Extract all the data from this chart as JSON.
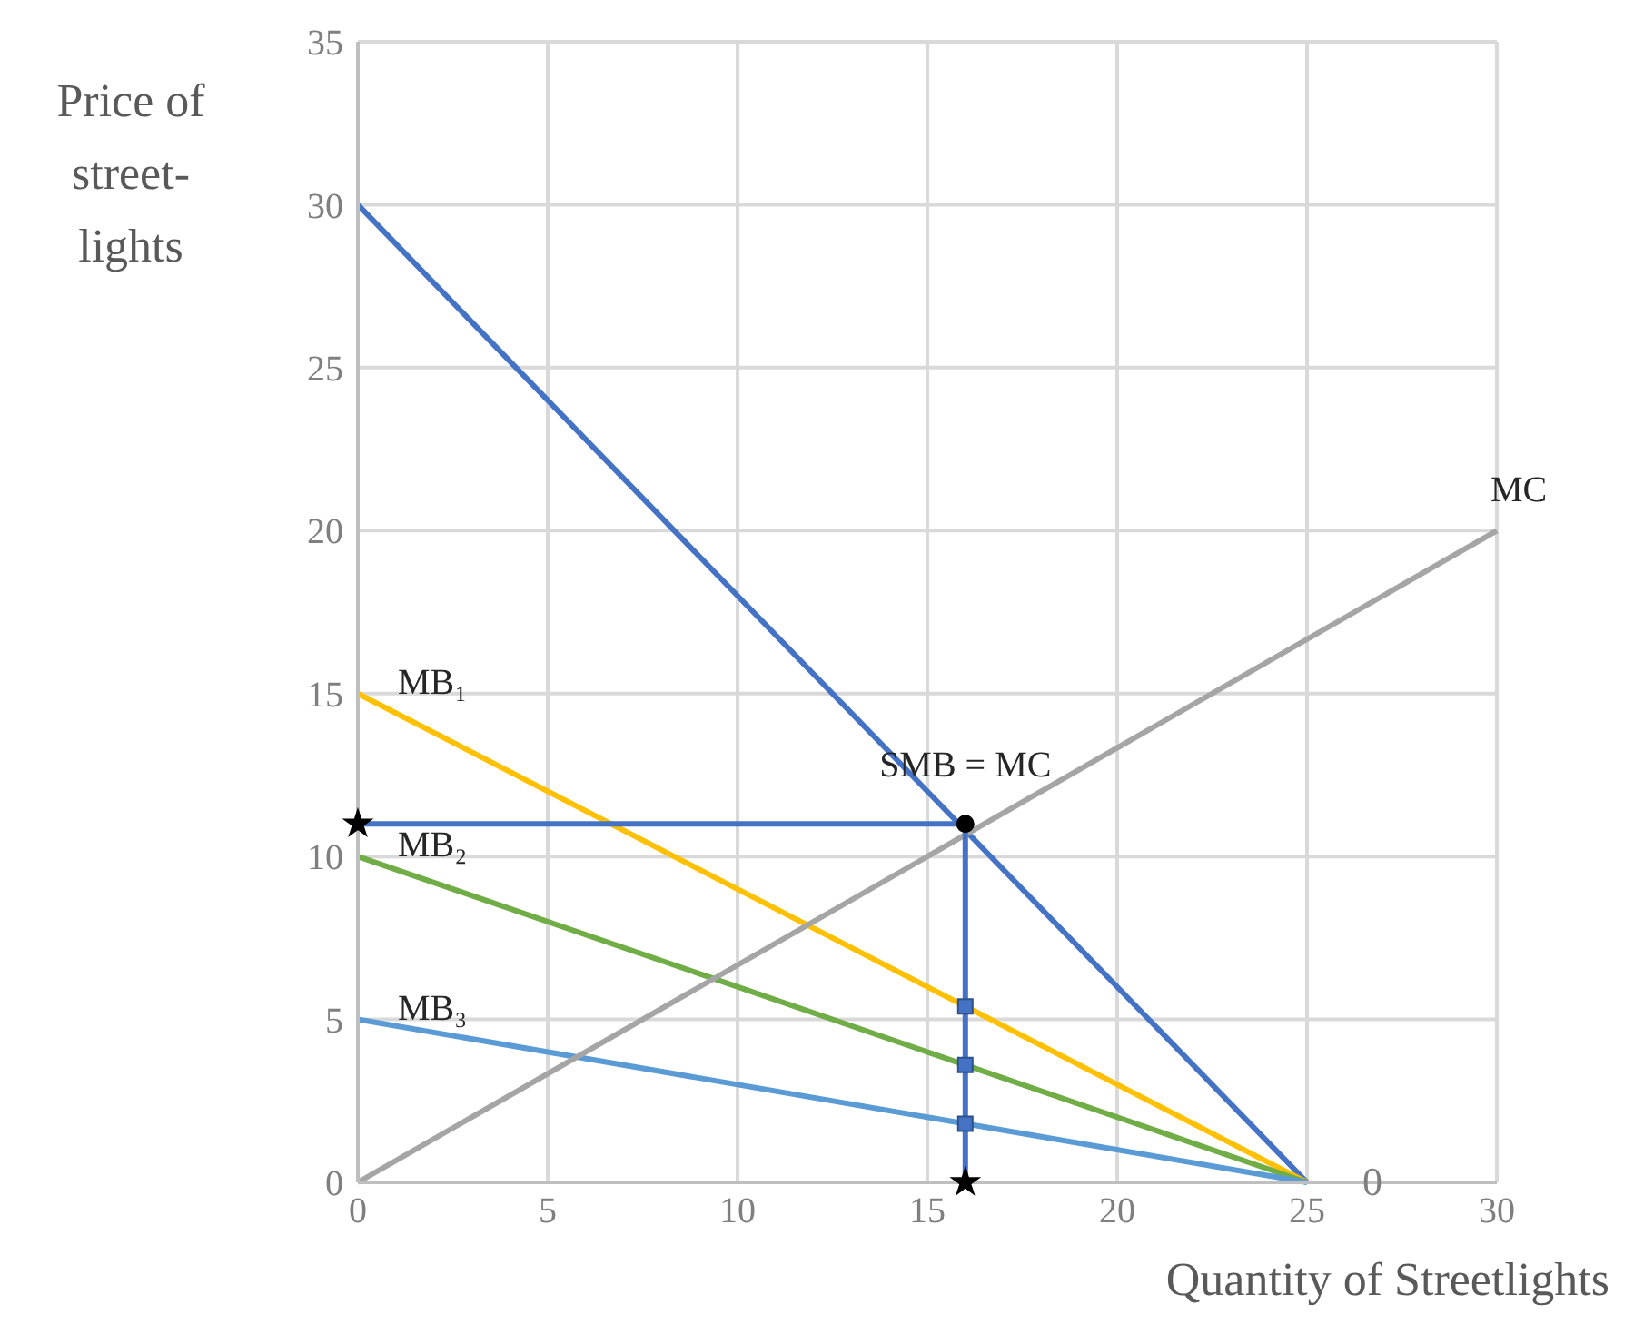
{
  "chart_data": {
    "type": "line",
    "xlabel": "Quantity of Streetlights",
    "ylabel": "Price of street-lights",
    "xlim": [
      0,
      30
    ],
    "xticks": [
      0,
      5,
      10,
      15,
      20,
      25,
      30
    ],
    "ylim": [
      0,
      35
    ],
    "yticks": [
      0,
      5,
      10,
      15,
      20,
      25,
      30,
      35
    ],
    "grid": true,
    "legend": false,
    "marker": "none",
    "line_style": "solid",
    "series": [
      {
        "color": "#4472c4",
        "x": [
          0,
          25
        ],
        "values": [
          30,
          0
        ]
      },
      {
        "name": "MB₁",
        "color": "#ffc000",
        "x": [
          0,
          25
        ],
        "values": [
          15,
          0
        ]
      },
      {
        "name": "MB₂",
        "color": "#70ad47",
        "x": [
          0,
          25
        ],
        "values": [
          10,
          0
        ]
      },
      {
        "name": "MB₃",
        "color": "#5b9bd5",
        "x": [
          0,
          25
        ],
        "values": [
          5,
          0
        ]
      },
      {
        "name": "MC",
        "color": "#a5a5a5",
        "x": [
          0,
          30
        ],
        "values": [
          0,
          20
        ]
      },
      {
        "color": "#4472c4",
        "x": [
          0,
          16
        ],
        "values": [
          11,
          11
        ]
      },
      {
        "color": "#4472c4",
        "x": [
          16,
          16
        ],
        "values": [
          11,
          0
        ]
      },
      {
        "type": "scatter",
        "marker": "square",
        "color": "#4472c4",
        "x": [
          16,
          16,
          16
        ],
        "values": [
          5.4,
          3.6,
          1.8
        ]
      },
      {
        "type": "scatter",
        "marker": "star",
        "color": "#000000",
        "x": [
          0,
          16
        ],
        "values": [
          11,
          0
        ]
      },
      {
        "type": "scatter",
        "marker": "circle",
        "color": "#000000",
        "x": [
          16
        ],
        "values": [
          11
        ]
      }
    ],
    "annotations": [
      {
        "text": "SMB = MC",
        "x": 16,
        "y": 11
      },
      {
        "text": "0",
        "x": 25,
        "y": 0
      }
    ]
  }
}
